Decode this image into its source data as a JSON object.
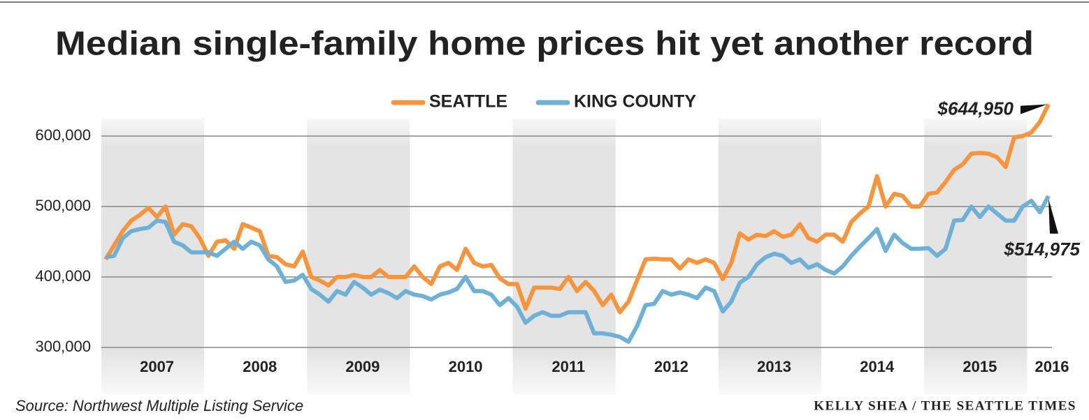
{
  "chart_data": {
    "type": "line",
    "title": "Median single-family home prices hit yet another record",
    "categories": [
      null,
      null,
      null,
      null,
      null,
      null,
      "2007",
      null,
      null,
      null,
      null,
      null,
      null,
      null,
      null,
      null,
      null,
      null,
      "2008",
      null,
      null,
      null,
      null,
      null,
      null,
      null,
      null,
      null,
      null,
      null,
      "2009",
      null,
      null,
      null,
      null,
      null,
      null,
      null,
      null,
      null,
      null,
      null,
      "2010",
      null,
      null,
      null,
      null,
      null,
      null,
      null,
      null,
      null,
      null,
      null,
      "2011",
      null,
      null,
      null,
      null,
      null,
      null,
      null,
      null,
      null,
      null,
      null,
      "2012",
      null,
      null,
      null,
      null,
      null,
      null,
      null,
      null,
      null,
      null,
      null,
      "2013",
      null,
      null,
      null,
      null,
      null,
      null,
      null,
      null,
      null,
      null,
      null,
      "2014",
      null,
      null,
      null,
      null,
      null,
      null,
      null,
      null,
      null,
      null,
      null,
      "2015",
      null,
      null,
      null,
      null,
      null,
      null,
      null,
      "2016"
    ],
    "series": [
      {
        "name": "SEATTLE",
        "color": "#f7943c",
        "values": [
          425000,
          445000,
          465000,
          480000,
          488000,
          498000,
          485000,
          500000,
          460000,
          475000,
          472000,
          455000,
          430000,
          450000,
          452000,
          440000,
          475000,
          470000,
          465000,
          430000,
          428000,
          418000,
          415000,
          436000,
          400000,
          395000,
          388000,
          400000,
          400000,
          403000,
          400000,
          400000,
          410000,
          400000,
          400000,
          400000,
          415000,
          400000,
          390000,
          415000,
          420000,
          410000,
          440000,
          420000,
          415000,
          417000,
          398000,
          390000,
          390000,
          355000,
          385000,
          385000,
          385000,
          383000,
          400000,
          380000,
          393000,
          380000,
          360000,
          375000,
          350000,
          365000,
          395000,
          425000,
          426000,
          425000,
          425000,
          412000,
          425000,
          420000,
          425000,
          420000,
          397000,
          420000,
          462000,
          453000,
          460000,
          458000,
          465000,
          457000,
          460000,
          475000,
          455000,
          450000,
          460000,
          460000,
          450000,
          478000,
          490000,
          500000,
          543000,
          500000,
          518000,
          515000,
          500000,
          500000,
          518000,
          520000,
          535000,
          552000,
          560000,
          575000,
          576000,
          575000,
          570000,
          556000,
          598000,
          600000,
          605000,
          620000,
          644950
        ]
      },
      {
        "name": "KING COUNTY",
        "color": "#6fb1d6",
        "values": [
          428000,
          430000,
          455000,
          465000,
          468000,
          470000,
          480000,
          478000,
          450000,
          445000,
          435000,
          435000,
          435000,
          430000,
          440000,
          450000,
          440000,
          450000,
          445000,
          425000,
          415000,
          393000,
          395000,
          403000,
          383000,
          375000,
          365000,
          380000,
          375000,
          393000,
          385000,
          375000,
          382000,
          377000,
          370000,
          380000,
          375000,
          373000,
          368000,
          375000,
          378000,
          383000,
          400000,
          380000,
          380000,
          375000,
          360000,
          370000,
          358000,
          335000,
          345000,
          350000,
          345000,
          345000,
          350000,
          350000,
          350000,
          320000,
          320000,
          318000,
          315000,
          308000,
          330000,
          360000,
          362000,
          380000,
          375000,
          378000,
          375000,
          370000,
          385000,
          380000,
          351000,
          365000,
          392000,
          400000,
          418000,
          428000,
          433000,
          430000,
          420000,
          425000,
          413000,
          418000,
          410000,
          405000,
          415000,
          430000,
          443000,
          455000,
          468000,
          437000,
          460000,
          448000,
          440000,
          440000,
          441000,
          430000,
          440000,
          480000,
          481000,
          500000,
          485000,
          500000,
          490000,
          480000,
          480000,
          500000,
          508000,
          492000,
          514975
        ]
      }
    ],
    "ylim": [
      240000,
      650000
    ],
    "yticks": [
      {
        "value": 300000,
        "label": "300,000"
      },
      {
        "value": 400000,
        "label": "400,000"
      },
      {
        "value": 500000,
        "label": "500,000"
      },
      {
        "value": 600000,
        "label": "600,000"
      }
    ],
    "grid": true,
    "annotations": [
      "$644,950",
      "$514,975"
    ],
    "source": "Source: Northwest Multiple Listing Service",
    "credit": "KELLY SHEA / THE SEATTLE TIMES"
  }
}
